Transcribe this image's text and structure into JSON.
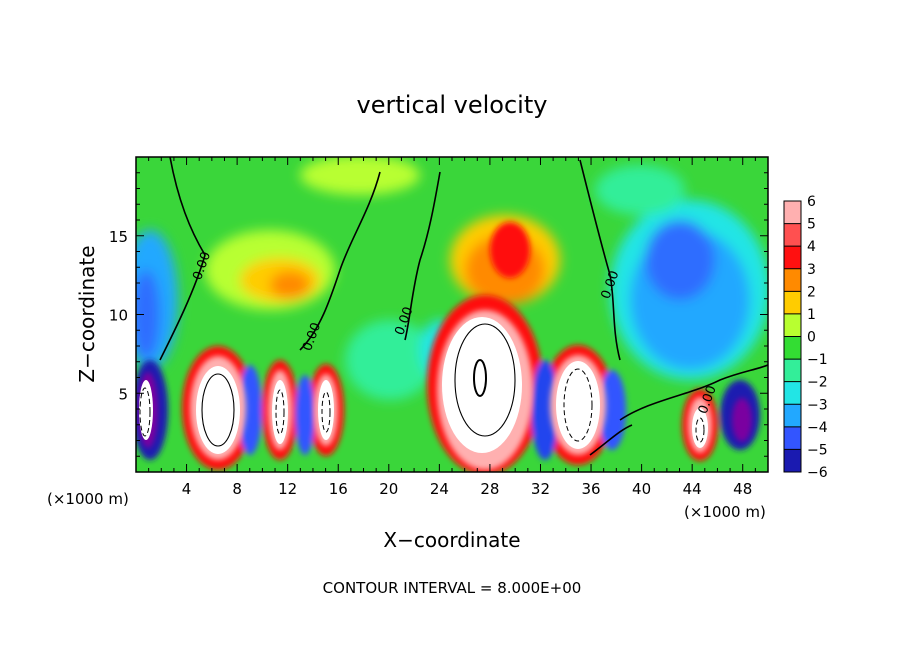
{
  "chart_data": {
    "type": "heatmap",
    "title": "vertical velocity",
    "xlabel": "X−coordinate",
    "ylabel": "Z−coordinate",
    "x_unit_left": "(×1000 m)",
    "x_unit_right": "(×1000 m)",
    "footer": "CONTOUR INTERVAL = 8.000E+00",
    "xlim": [
      0,
      50
    ],
    "ylim": [
      0,
      20
    ],
    "x_ticks": [
      4,
      8,
      12,
      16,
      20,
      24,
      28,
      32,
      36,
      40,
      44,
      48
    ],
    "y_ticks": [
      5,
      10,
      15
    ],
    "colorbar": {
      "levels": [
        6,
        5,
        4,
        3,
        2,
        1,
        0,
        -1,
        -2,
        -3,
        -4,
        -5,
        -6
      ],
      "colors": [
        "#ffb0b0",
        "#ff5050",
        "#ff1010",
        "#ff8a00",
        "#ffcc00",
        "#b8ff30",
        "#33dd33",
        "#33ee99",
        "#22e5e5",
        "#22a8ff",
        "#3355ff",
        "#1a1ab0",
        "#7a00a0"
      ]
    },
    "contour_labels": [
      {
        "text": "0.00",
        "x": 5.5,
        "z": 13
      },
      {
        "text": "0.00",
        "x": 14.2,
        "z": 8.5
      },
      {
        "text": "0.00",
        "x": 21.5,
        "z": 9.5
      },
      {
        "text": "0.00",
        "x": 37.8,
        "z": 11.8
      },
      {
        "text": "0.00",
        "x": 45.5,
        "z": 4.5
      }
    ],
    "features": [
      {
        "type": "updraft",
        "x": 7,
        "z": 4.2,
        "w": 8
      },
      {
        "type": "updraft",
        "x": 11.4,
        "z": 4.5,
        "w": 7
      },
      {
        "type": "updraft",
        "x": 15,
        "z": 4.5,
        "w": 7
      },
      {
        "type": "updraft",
        "x": 27.5,
        "z": 6,
        "w": 10
      },
      {
        "type": "updraft",
        "x": 34.5,
        "z": 4.5,
        "w": 9
      },
      {
        "type": "updraft",
        "x": 44.5,
        "z": 3,
        "w": 7
      },
      {
        "type": "updraft",
        "x": 1,
        "z": 4.5,
        "w": 7
      },
      {
        "type": "positive-region",
        "x": 12,
        "z": 12,
        "w": 3
      },
      {
        "type": "positive-region",
        "x": 29,
        "z": 13.5,
        "w": 4
      },
      {
        "type": "negative-region",
        "x": 43,
        "z": 11,
        "w": -3
      },
      {
        "type": "negative-region",
        "x": 2,
        "z": 11,
        "w": -3
      }
    ]
  }
}
